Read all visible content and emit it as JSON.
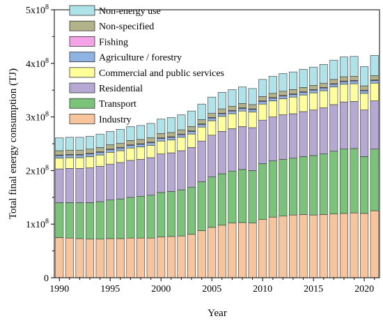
{
  "chart_data": {
    "type": "bar",
    "stacked": true,
    "xlabel": "Year",
    "ylabel": "Total final energy consumption (TJ)",
    "ylim": [
      0,
      500000000
    ],
    "yticks": [
      {
        "value": 0,
        "mant": "0",
        "exp": ""
      },
      {
        "value": 100000000,
        "mant": "1x10",
        "exp": "8"
      },
      {
        "value": 200000000,
        "mant": "2x10",
        "exp": "8"
      },
      {
        "value": 300000000,
        "mant": "3x10",
        "exp": "8"
      },
      {
        "value": 400000000,
        "mant": "4x10",
        "exp": "8"
      },
      {
        "value": 500000000,
        "mant": "5x10",
        "exp": "8"
      }
    ],
    "xtick_labels": [
      "1990",
      "1995",
      "2000",
      "2005",
      "2010",
      "2015",
      "2020"
    ],
    "xtick_positions": [
      1990,
      1995,
      2000,
      2005,
      2010,
      2015,
      2020
    ],
    "legend_position": "top-left",
    "categories": [
      1990,
      1991,
      1992,
      1993,
      1994,
      1995,
      1996,
      1997,
      1998,
      1999,
      2000,
      2001,
      2002,
      2003,
      2004,
      2005,
      2006,
      2007,
      2008,
      2009,
      2010,
      2011,
      2012,
      2013,
      2014,
      2015,
      2016,
      2017,
      2018,
      2019,
      2020,
      2021
    ],
    "series": [
      {
        "name": "Industry",
        "color": "#f8c49c",
        "values": [
          75000000,
          74000000,
          73000000,
          72000000,
          72000000,
          73000000,
          73000000,
          74000000,
          74000000,
          74000000,
          76000000,
          77000000,
          78000000,
          81000000,
          88000000,
          94000000,
          98000000,
          102000000,
          103000000,
          102000000,
          109000000,
          113000000,
          115000000,
          117000000,
          118000000,
          117000000,
          118000000,
          119000000,
          120000000,
          121000000,
          120000000,
          125000000
        ]
      },
      {
        "name": "Transport",
        "color": "#7ac47a",
        "values": [
          65000000,
          66000000,
          67000000,
          68000000,
          70000000,
          72000000,
          74000000,
          76000000,
          78000000,
          80000000,
          83000000,
          84000000,
          86000000,
          88000000,
          91000000,
          94000000,
          96000000,
          97000000,
          99000000,
          98000000,
          104000000,
          105000000,
          106000000,
          106000000,
          108000000,
          111000000,
          113000000,
          117000000,
          120000000,
          120000000,
          106000000,
          115000000
        ]
      },
      {
        "name": "Residential",
        "color": "#b5a9d4",
        "values": [
          63000000,
          64000000,
          64000000,
          65000000,
          66000000,
          67000000,
          68000000,
          69000000,
          69000000,
          70000000,
          72000000,
          72000000,
          73000000,
          74000000,
          76000000,
          78000000,
          79000000,
          79000000,
          80000000,
          80000000,
          81000000,
          82000000,
          83000000,
          83000000,
          84000000,
          85000000,
          86000000,
          87000000,
          88000000,
          88000000,
          87000000,
          90000000
        ]
      },
      {
        "name": "Commercial and public services",
        "color": "#ffff99",
        "values": [
          20000000,
          20000000,
          20000000,
          21000000,
          21000000,
          22000000,
          22000000,
          23000000,
          23000000,
          23000000,
          24000000,
          24000000,
          25000000,
          25000000,
          26000000,
          27000000,
          28000000,
          28000000,
          29000000,
          29000000,
          30000000,
          30000000,
          30000000,
          31000000,
          31000000,
          32000000,
          32000000,
          33000000,
          33000000,
          33000000,
          31000000,
          33000000
        ]
      },
      {
        "name": "Agriculture / forestry",
        "color": "#8fb4e3",
        "values": [
          5000000,
          5000000,
          5000000,
          5000000,
          5000000,
          5000000,
          5000000,
          5000000,
          5000000,
          5000000,
          5000000,
          5000000,
          5000000,
          5000000,
          5000000,
          5000000,
          5000000,
          5000000,
          5000000,
          5000000,
          5000000,
          5000000,
          5000000,
          5000000,
          5000000,
          5000000,
          5000000,
          5000000,
          5000000,
          5000000,
          5000000,
          5000000
        ]
      },
      {
        "name": "Fishing",
        "color": "#f4a3e6",
        "values": [
          1000000,
          1000000,
          1000000,
          1000000,
          1000000,
          1000000,
          1000000,
          1000000,
          1000000,
          1000000,
          1000000,
          1000000,
          1000000,
          1000000,
          1000000,
          1000000,
          1000000,
          1000000,
          1000000,
          1000000,
          1000000,
          1000000,
          1000000,
          1000000,
          1000000,
          1000000,
          1000000,
          1000000,
          1000000,
          1000000,
          1000000,
          1000000
        ]
      },
      {
        "name": "Non-specified",
        "color": "#b3b38a",
        "values": [
          8000000,
          8000000,
          8000000,
          8000000,
          8000000,
          8000000,
          8000000,
          8000000,
          8000000,
          8000000,
          8000000,
          8000000,
          8000000,
          8000000,
          8000000,
          8000000,
          8000000,
          8000000,
          8000000,
          8000000,
          8000000,
          8000000,
          8000000,
          8000000,
          8000000,
          8000000,
          8000000,
          8000000,
          8000000,
          8000000,
          8000000,
          8000000
        ]
      },
      {
        "name": "Non-energy use",
        "color": "#aee3ea",
        "values": [
          24000000,
          24000000,
          24000000,
          24000000,
          25000000,
          25000000,
          26000000,
          26000000,
          26000000,
          27000000,
          27000000,
          28000000,
          28000000,
          29000000,
          29000000,
          30000000,
          31000000,
          31000000,
          31000000,
          30000000,
          32000000,
          32000000,
          33000000,
          33000000,
          34000000,
          34000000,
          35000000,
          36000000,
          37000000,
          37000000,
          36000000,
          38000000
        ]
      }
    ]
  }
}
